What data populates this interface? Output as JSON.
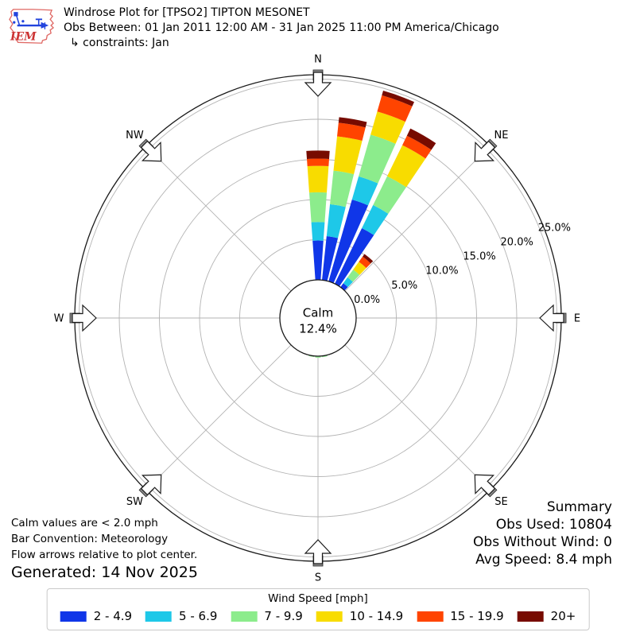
{
  "header": {
    "title": "Windrose Plot for [TPSO2] TIPTON MESONET",
    "subtitle": "Obs Between: 01 Jan 2011 12:00 AM - 31 Jan 2025 11:00 PM America/Chicago",
    "constraints": "↳ constraints: Jan",
    "logo_text": "IEM"
  },
  "summary": {
    "title": "Summary",
    "obs_used": "Obs Used: 10804",
    "obs_without_wind": "Obs Without Wind: 0",
    "avg_speed": "Avg Speed: 8.4 mph"
  },
  "footnotes": {
    "calm_note": "Calm values are < 2.0 mph",
    "bar_convention": "Bar Convention: Meteorology",
    "flow_note": "Flow arrows relative to plot center.",
    "generated": "Generated: 14 Nov 2025"
  },
  "legend": {
    "title": "Wind Speed [mph]",
    "entries": [
      {
        "label": "2 - 4.9",
        "color": "#1036E8"
      },
      {
        "label": "5 - 6.9",
        "color": "#1EC8E8"
      },
      {
        "label": "7 - 9.9",
        "color": "#8CEC8C"
      },
      {
        "label": "10 - 14.9",
        "color": "#F8DC00"
      },
      {
        "label": "15 - 19.9",
        "color": "#FF4400"
      },
      {
        "label": "20+",
        "color": "#770B00"
      }
    ]
  },
  "chart_data": {
    "type": "bar",
    "subtype": "windrose-polar-stacked",
    "units": "percent of observations",
    "title": "Windrose Plot for [TPSO2] TIPTON MESONET",
    "calm": {
      "label": "Calm",
      "percent": 12.4,
      "percent_label": "12.4%"
    },
    "ring_percents": [
      0,
      5,
      10,
      15,
      20,
      25
    ],
    "ring_labels": [
      "0.0%",
      "5.0%",
      "10.0%",
      "15.0%",
      "20.0%",
      "25.0%"
    ],
    "ring_label_azimuth_deg": 69,
    "compass_labels": [
      "N",
      "NE",
      "E",
      "SE",
      "S",
      "SW",
      "W",
      "NW"
    ],
    "sector_width_deg": 10,
    "bar_half_width_deg": 4,
    "speed_bins_mph": [
      "2 - 4.9",
      "5 - 6.9",
      "7 - 9.9",
      "10 - 14.9",
      "15 - 19.9",
      "20+"
    ],
    "series": [
      {
        "direction_deg": 0,
        "values": [
          4.9,
          2.3,
          3.7,
          3.3,
          0.9,
          1.0
        ]
      },
      {
        "direction_deg": 10,
        "values": [
          5.5,
          4.0,
          4.2,
          4.3,
          1.7,
          0.7
        ]
      },
      {
        "direction_deg": 20,
        "values": [
          10.6,
          3.0,
          5.4,
          3.0,
          2.1,
          0.6
        ]
      },
      {
        "direction_deg": 30,
        "values": [
          7.7,
          3.2,
          4.0,
          4.3,
          1.3,
          1.0
        ]
      },
      {
        "direction_deg": 40,
        "values": [
          0.6,
          0.9,
          1.2,
          1.2,
          0.8,
          0.4
        ]
      },
      {
        "direction_deg": 170,
        "values": [
          0.03,
          0.02,
          0.1,
          0,
          0,
          0
        ]
      },
      {
        "direction_deg": 180,
        "values": [
          0.04,
          0.02,
          0.12,
          0,
          0,
          0
        ]
      },
      {
        "direction_deg": 190,
        "values": [
          0.03,
          0.01,
          0.08,
          0,
          0,
          0
        ]
      }
    ]
  }
}
